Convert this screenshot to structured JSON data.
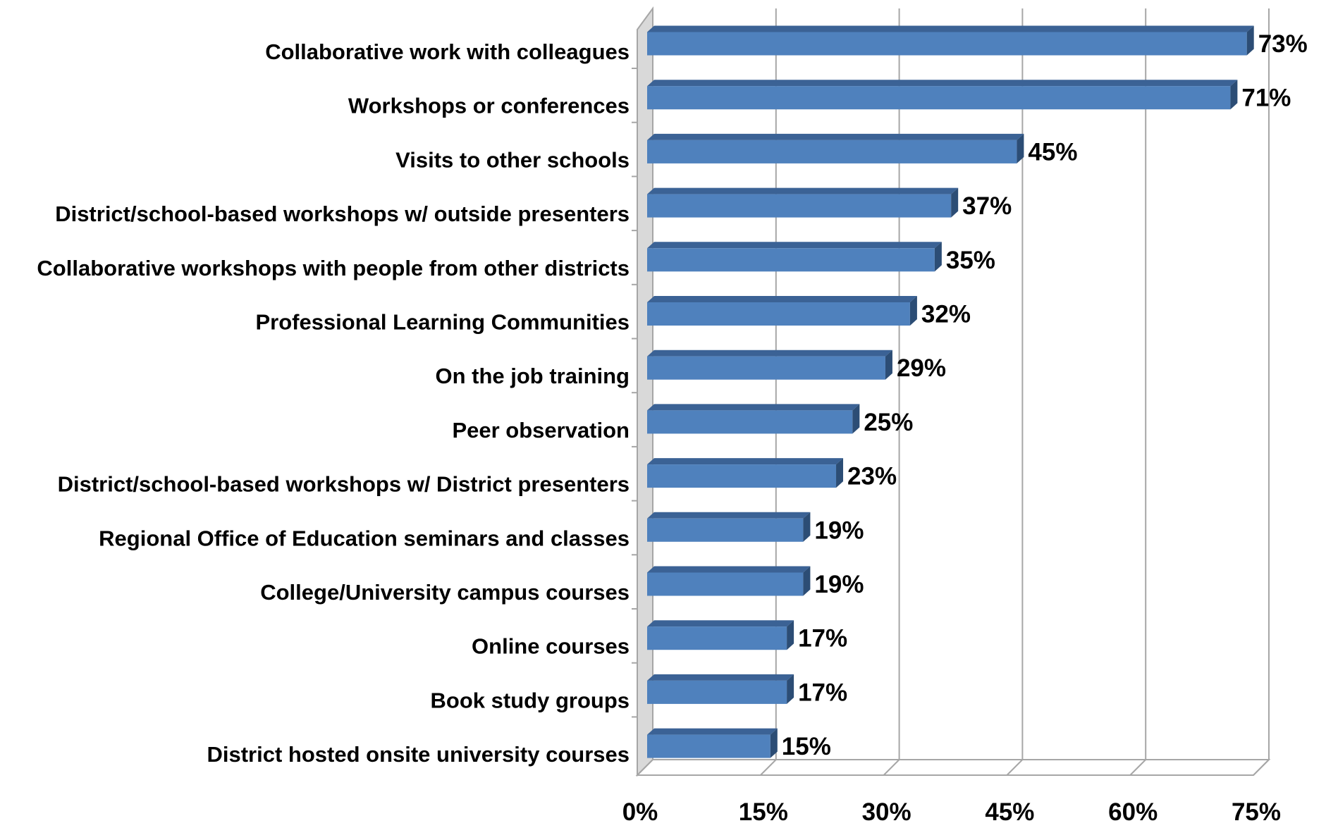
{
  "chart_data": {
    "type": "bar",
    "orientation": "horizontal",
    "categories": [
      "Collaborative work with colleagues",
      "Workshops or conferences",
      "Visits to other schools",
      "District/school-based workshops w/ outside presenters",
      "Collaborative workshops with people from other districts",
      "Professional Learning Communities",
      "On the job training",
      "Peer observation",
      "District/school-based workshops w/ District presenters",
      "Regional Office of Education seminars and classes",
      "College/University campus courses",
      "Online courses",
      "Book study groups",
      "District hosted onsite university courses"
    ],
    "values": [
      73,
      71,
      45,
      37,
      35,
      32,
      29,
      25,
      23,
      19,
      19,
      17,
      17,
      15
    ],
    "value_labels": [
      "73%",
      "71%",
      "45%",
      "37%",
      "35%",
      "32%",
      "29%",
      "25%",
      "23%",
      "19%",
      "19%",
      "17%",
      "17%",
      "15%"
    ],
    "xticks": [
      0,
      15,
      30,
      45,
      60,
      75
    ],
    "xtick_labels": [
      "0%",
      "15%",
      "30%",
      "45%",
      "60%",
      "75%"
    ],
    "xlim": [
      0,
      75
    ],
    "grid": true,
    "colors": {
      "bar_front": "#4F81BD",
      "bar_top": "#3B6295",
      "bar_side": "#2C4D75",
      "grid": "#A6A6A6"
    }
  }
}
